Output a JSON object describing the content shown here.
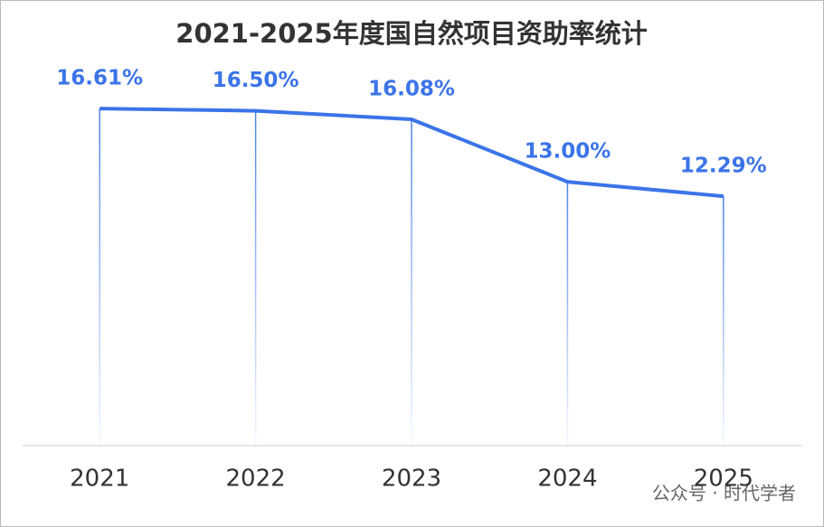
{
  "chart_data": {
    "type": "line",
    "title": "2021-2025年度国自然项目资助率统计",
    "categories": [
      "2021",
      "2022",
      "2023",
      "2024",
      "2025"
    ],
    "values": [
      16.61,
      16.5,
      16.08,
      13.0,
      12.29
    ],
    "value_labels": [
      "16.61%",
      "16.50%",
      "16.08%",
      "13.00%",
      "12.29%"
    ],
    "color": "#3b74e8",
    "ylim": [
      0,
      20
    ],
    "drop_lines": true
  },
  "watermark": "公众号 · 时代学者"
}
